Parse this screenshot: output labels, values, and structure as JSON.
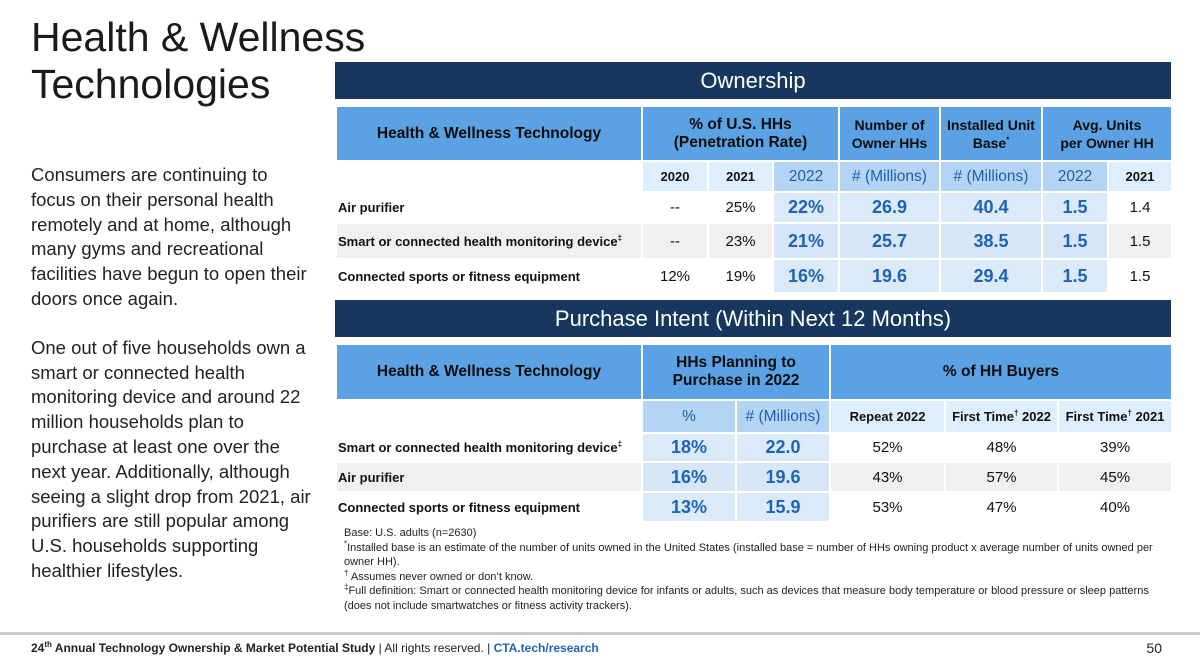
{
  "title_line1": "Health & Wellness",
  "title_line2": "Technologies",
  "body": {
    "p1": "Consumers are continuing to focus on their personal health remotely and at home, although many gyms and recreational facilities have begun to open their doors once again.",
    "p2": "One out of five households own a smart or connected health monitoring device and around 22 million households plan to purchase at least one over the next year. Additionally, although seeing a slight drop from 2021, air purifiers are still popular among U.S. households supporting healthier lifestyles."
  },
  "ownership": {
    "banner": "Ownership",
    "headers": {
      "tech": "Health & Wellness Technology",
      "pen_line1": "% of U.S. HHs",
      "pen_line2": "(Penetration Rate)",
      "num_line1": "Number of",
      "num_line2": "Owner HHs",
      "base_line1": "Installed Unit",
      "base_line2": "Base",
      "base_mark": "*",
      "avg_line1": "Avg. Units",
      "avg_line2": "per Owner HH"
    },
    "subheaders": [
      "2020",
      "2021",
      "2022",
      "# (Millions)",
      "# (Millions)",
      "2022",
      "2021"
    ],
    "rows": [
      {
        "label": "Air purifier",
        "mark": "",
        "v2020": "--",
        "v2021": "25%",
        "v2022": "22%",
        "owners": "26.9",
        "base": "40.4",
        "avg2022": "1.5",
        "avg2021": "1.4"
      },
      {
        "label": "Smart or connected health monitoring device",
        "mark": "‡",
        "v2020": "--",
        "v2021": "23%",
        "v2022": "21%",
        "owners": "25.7",
        "base": "38.5",
        "avg2022": "1.5",
        "avg2021": "1.5"
      },
      {
        "label": "Connected sports or fitness equipment",
        "mark": "",
        "v2020": "12%",
        "v2021": "19%",
        "v2022": "16%",
        "owners": "19.6",
        "base": "29.4",
        "avg2022": "1.5",
        "avg2021": "1.5"
      }
    ]
  },
  "intent": {
    "banner": "Purchase Intent (Within Next 12 Months)",
    "headers": {
      "tech": "Health & Wellness Technology",
      "plan_line1": "HHs Planning to",
      "plan_line2": "Purchase in 2022",
      "buyers": "% of HH Buyers"
    },
    "subheaders": {
      "pct": "%",
      "millions": "# (Millions)",
      "repeat": "Repeat 2022",
      "first22": "First Time",
      "first22_year": " 2022",
      "first21": "First Time",
      "first21_year": " 2021",
      "dagger": "†"
    },
    "rows": [
      {
        "label": "Smart or connected health monitoring device",
        "mark": "‡",
        "pct": "18%",
        "millions": "22.0",
        "repeat": "52%",
        "first22": "48%",
        "first21": "39%"
      },
      {
        "label": "Air purifier",
        "mark": "",
        "pct": "16%",
        "millions": "19.6",
        "repeat": "43%",
        "first22": "57%",
        "first21": "45%"
      },
      {
        "label": "Connected sports or fitness equipment",
        "mark": "",
        "pct": "13%",
        "millions": "15.9",
        "repeat": "53%",
        "first22": "47%",
        "first21": "40%"
      }
    ]
  },
  "footnotes": {
    "base": "Base: U.S. adults (n=2630)",
    "star_mark": "*",
    "star": "Installed base is an estimate of the number of units owned in the United States (installed base = number of HHs owning product x average number of units owned per owner HH).",
    "dagger_mark": "†",
    "dagger": " Assumes never owned or don’t know.",
    "ddagger_mark": "‡",
    "ddagger": "Full definition: Smart or connected health monitoring device for infants or adults, such as devices that measure body temperature or blood pressure or sleep patterns (does not include smartwatches or fitness activity trackers)."
  },
  "footer": {
    "num": "24",
    "ord": "th",
    "study": " Annual Technology Ownership & Market Potential Study",
    "sep1": " | ",
    "rights": " All rights reserved. ",
    "sep2": " | ",
    "link": "CTA.tech/research"
  },
  "page_number": "50"
}
